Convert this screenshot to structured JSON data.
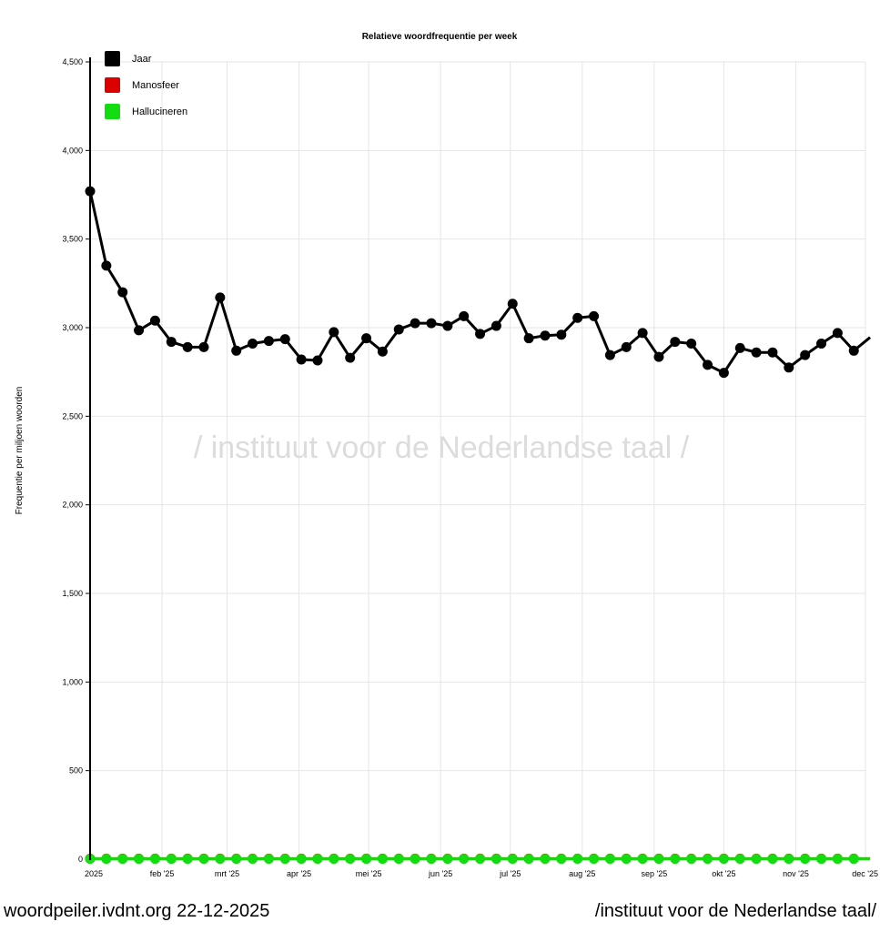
{
  "watermark": "/ instituut voor de Nederlandse taal /",
  "footer": {
    "left": "woordpeiler.ivdnt.org 22-12-2025",
    "right": "/instituut voor de Nederlandse taal/"
  },
  "colors": {
    "Jaar": "#000000",
    "Manosfeer": "#dd0000",
    "Hallucineren": "#11dd11"
  },
  "chart_data": {
    "type": "line",
    "title": "Relatieve woordfrequentie per week",
    "xlabel": "",
    "ylabel": "Frequentie per miljoen woorden",
    "ylim": [
      0,
      4500
    ],
    "yticks": [
      0,
      500,
      1000,
      1500,
      2000,
      2500,
      3000,
      3500,
      4000,
      4500
    ],
    "ytick_labels": [
      "0",
      "500",
      "1,000",
      "1,500",
      "2,000",
      "2,500",
      "3,000",
      "3,500",
      "4,000",
      "4,500"
    ],
    "xlim": [
      "2025-01-01",
      "2025-12-01"
    ],
    "xticks": [
      {
        "date": "2025-01-01",
        "label": "2025"
      },
      {
        "date": "2025-02-01",
        "label": "feb '25"
      },
      {
        "date": "2025-03-01",
        "label": "mrt '25"
      },
      {
        "date": "2025-04-01",
        "label": "apr '25"
      },
      {
        "date": "2025-05-01",
        "label": "mei '25"
      },
      {
        "date": "2025-06-01",
        "label": "jun '25"
      },
      {
        "date": "2025-07-01",
        "label": "jul '25"
      },
      {
        "date": "2025-08-01",
        "label": "aug '25"
      },
      {
        "date": "2025-09-01",
        "label": "sep '25"
      },
      {
        "date": "2025-10-01",
        "label": "okt '25"
      },
      {
        "date": "2025-11-01",
        "label": "nov '25"
      },
      {
        "date": "2025-12-01",
        "label": "dec '25"
      }
    ],
    "grid": true,
    "legend_position": "top-left",
    "x": [
      "2025-01-01",
      "2025-01-08",
      "2025-01-15",
      "2025-01-22",
      "2025-01-29",
      "2025-02-05",
      "2025-02-12",
      "2025-02-19",
      "2025-02-26",
      "2025-03-05",
      "2025-03-12",
      "2025-03-19",
      "2025-03-26",
      "2025-04-02",
      "2025-04-09",
      "2025-04-16",
      "2025-04-23",
      "2025-04-30",
      "2025-05-07",
      "2025-05-14",
      "2025-05-21",
      "2025-05-28",
      "2025-06-04",
      "2025-06-11",
      "2025-06-18",
      "2025-06-25",
      "2025-07-02",
      "2025-07-09",
      "2025-07-16",
      "2025-07-23",
      "2025-07-30",
      "2025-08-06",
      "2025-08-13",
      "2025-08-20",
      "2025-08-27",
      "2025-09-03",
      "2025-09-10",
      "2025-09-17",
      "2025-09-24",
      "2025-10-01",
      "2025-10-08",
      "2025-10-15",
      "2025-10-22",
      "2025-10-29",
      "2025-11-05",
      "2025-11-12",
      "2025-11-19",
      "2025-11-26",
      "2025-12-03"
    ],
    "series": [
      {
        "name": "Jaar",
        "values": [
          3770,
          3350,
          3200,
          2985,
          3040,
          2920,
          2890,
          2890,
          3170,
          2870,
          2910,
          2925,
          2935,
          2820,
          2815,
          2975,
          2830,
          2940,
          2865,
          2990,
          3025,
          3025,
          3010,
          3065,
          2965,
          3010,
          3135,
          2940,
          2955,
          2960,
          3055,
          3065,
          2845,
          2890,
          2970,
          2835,
          2920,
          2910,
          2790,
          2745,
          2885,
          2860,
          2860,
          2775,
          2845,
          2910,
          2970,
          2870,
          2945
        ]
      },
      {
        "name": "Manosfeer",
        "values": [
          3,
          3,
          3,
          3,
          3,
          3,
          3,
          3,
          3,
          3,
          3,
          3,
          3,
          3,
          3,
          3,
          3,
          3,
          3,
          3,
          3,
          3,
          3,
          3,
          3,
          3,
          3,
          3,
          3,
          3,
          3,
          3,
          3,
          3,
          3,
          3,
          3,
          3,
          3,
          3,
          3,
          3,
          3,
          3,
          3,
          3,
          3,
          3,
          3
        ]
      },
      {
        "name": "Hallucineren",
        "values": [
          2,
          2,
          2,
          2,
          2,
          2,
          2,
          2,
          2,
          2,
          2,
          2,
          2,
          2,
          2,
          2,
          2,
          2,
          2,
          2,
          2,
          2,
          2,
          2,
          2,
          2,
          2,
          2,
          2,
          2,
          2,
          2,
          2,
          2,
          2,
          2,
          2,
          2,
          2,
          2,
          2,
          2,
          2,
          2,
          2,
          2,
          2,
          2,
          2
        ]
      }
    ]
  }
}
